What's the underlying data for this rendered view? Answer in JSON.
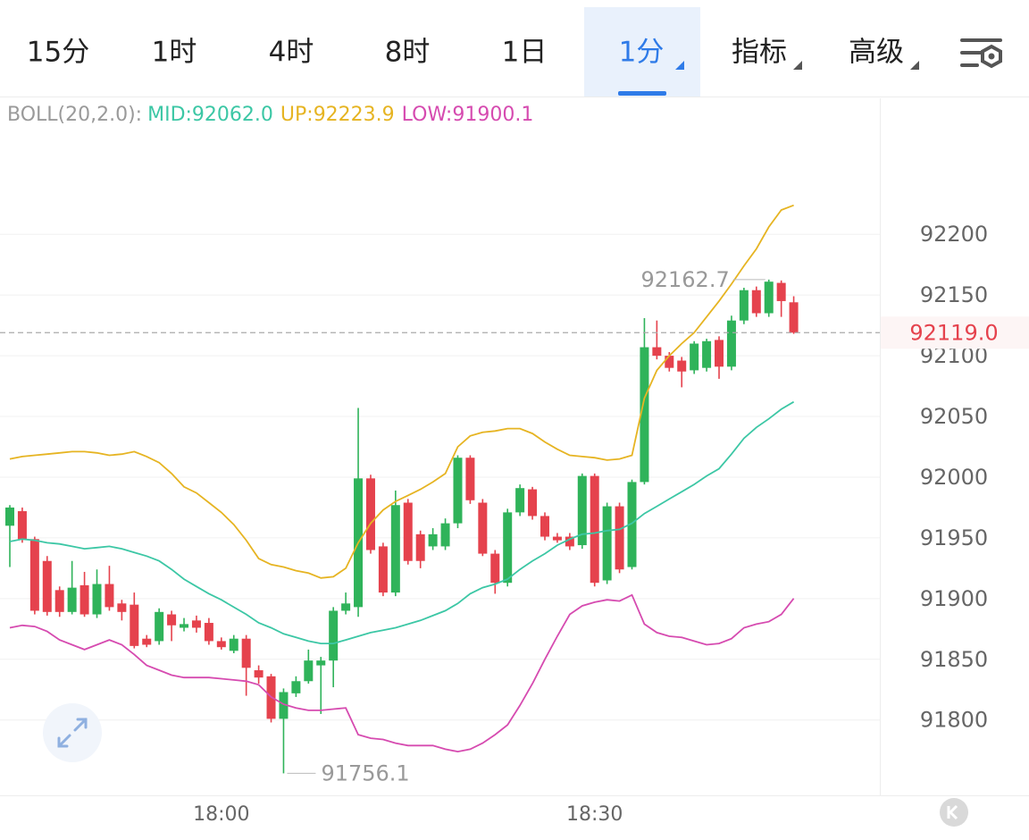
{
  "tabs": [
    "15分",
    "1时",
    "4时",
    "8时",
    "1日",
    "1分",
    "指标",
    "高级"
  ],
  "active_tab": 5,
  "chart_data": {
    "type": "candlestick",
    "legend_label": "BOLL(20,2.0):",
    "up_color": "#2fb35a",
    "down_color": "#e5424d",
    "grid": true,
    "ylim": [
      91738,
      92312
    ],
    "yticks": [
      91800,
      91850,
      91900,
      91950,
      92000,
      92050,
      92100,
      92150,
      92200
    ],
    "categories": [
      null,
      null,
      null,
      null,
      null,
      null,
      null,
      null,
      null,
      null,
      null,
      null,
      null,
      null,
      null,
      null,
      null,
      "18:00",
      null,
      null,
      null,
      null,
      null,
      null,
      null,
      null,
      null,
      null,
      null,
      null,
      null,
      null,
      null,
      null,
      null,
      null,
      null,
      null,
      null,
      null,
      null,
      null,
      null,
      null,
      null,
      null,
      null,
      "18:30",
      null,
      null,
      null,
      null,
      null,
      null,
      null,
      null,
      null,
      null,
      null,
      null,
      null,
      null,
      null,
      null
    ],
    "open": [
      91960,
      91972,
      91949,
      91931,
      91907,
      91889,
      91911,
      91887,
      91912,
      91896,
      91895,
      91867,
      91865,
      91887,
      91876,
      91882,
      91880,
      91865,
      91857,
      91867,
      91841,
      91836,
      91801,
      91822,
      91832,
      91845,
      91849,
      91890,
      91893,
      91999,
      91943,
      91905,
      91979,
      91953,
      91943,
      91943,
      91962,
      92016,
      91979,
      91937,
      91913,
      91971,
      91990,
      91968,
      91951,
      91951,
      91944,
      92001,
      91915,
      91976,
      91926,
      91996,
      92107,
      92100,
      92096,
      92088,
      92090,
      92113,
      92091,
      92129,
      92154,
      92135,
      92160,
      92144
    ],
    "high": [
      91977,
      91975,
      91951,
      91935,
      91910,
      91931,
      91922,
      91924,
      91927,
      91899,
      91905,
      91870,
      91892,
      91890,
      91884,
      91886,
      91884,
      91868,
      91870,
      91870,
      91845,
      91838,
      91826,
      91836,
      91858,
      91852,
      91893,
      91905,
      92057,
      92002,
      91946,
      91989,
      91982,
      91956,
      91958,
      91966,
      92018,
      92018,
      91982,
      91940,
      91974,
      91994,
      91992,
      91971,
      91954,
      91954,
      92003,
      92003,
      91979,
      91979,
      91998,
      92131,
      92129,
      92103,
      92099,
      92112,
      92114,
      92116,
      92133,
      92156,
      92157,
      92162.7,
      92162,
      92149
    ],
    "low": [
      91926,
      91946,
      91887,
      91886,
      91885,
      91887,
      91885,
      91884,
      91890,
      91882,
      91859,
      91860,
      91862,
      91865,
      91873,
      91872,
      91862,
      91858,
      91855,
      91820,
      91830,
      91798,
      91756.1,
      91819,
      91830,
      91805,
      91827,
      91887,
      91885,
      91937,
      91902,
      91902,
      91928,
      91925,
      91940,
      91940,
      91958,
      91978,
      91935,
      91904,
      91910,
      91968,
      91965,
      91948,
      91946,
      91940,
      91941,
      91910,
      91912,
      91921,
      91924,
      91994,
      92097,
      92087,
      92074,
      92085,
      92087,
      92081,
      92088,
      92126,
      92132,
      92132,
      92132,
      92118
    ],
    "close": [
      91975,
      91949,
      91890,
      91889,
      91889,
      91909,
      91887,
      91912,
      91893,
      91889,
      91861,
      91862,
      91889,
      91878,
      91879,
      91876,
      91865,
      91860,
      91867,
      91843,
      91835,
      91801,
      91823,
      91832,
      91849,
      91849,
      91890,
      91896,
      91999,
      91940,
      91905,
      91977,
      91931,
      91931,
      91953,
      91962,
      92016,
      91981,
      91937,
      91913,
      91971,
      91991,
      91968,
      91951,
      91948,
      91943,
      92001,
      91913,
      91976,
      91924,
      91996,
      92107,
      92100,
      92090,
      92087,
      92110,
      92112,
      92091,
      92129,
      92154,
      92135,
      92161,
      92145,
      92119
    ],
    "overlays": [
      {
        "label": "MID:92062.0",
        "color": "#3cc7a5",
        "values": [
          91947,
          91949,
          91948,
          91946,
          91945,
          91943,
          91941,
          91942,
          91943,
          91941,
          91938,
          91935,
          91931,
          91924,
          91916,
          91910,
          91904,
          91899,
          91893,
          91887,
          91880,
          91876,
          91871,
          91868,
          91865,
          91863,
          91863,
          91866,
          91869,
          91872,
          91874,
          91876,
          91879,
          91882,
          91886,
          91890,
          91896,
          91904,
          91909,
          91912,
          91916,
          91924,
          91931,
          91937,
          91944,
          91949,
          91953,
          91954,
          91956,
          91957,
          91962,
          91970,
          91976,
          91982,
          91988,
          91994,
          92001,
          92007,
          92019,
          92032,
          92041,
          92048,
          92056,
          92062.0
        ]
      },
      {
        "label": "UP:92223.9",
        "color": "#e6b422",
        "values": [
          92015,
          92017,
          92018,
          92019,
          92020,
          92021,
          92021,
          92020,
          92018,
          92019,
          92021,
          92017,
          92012,
          92003,
          91992,
          91987,
          91979,
          91971,
          91961,
          91948,
          91933,
          91928,
          91926,
          91923,
          91921,
          91917,
          91918,
          91925,
          91946,
          91962,
          91973,
          91980,
          91985,
          91990,
          91996,
          92003,
          92025,
          92034,
          92037,
          92038,
          92040,
          92040,
          92036,
          92029,
          92023,
          92018,
          92017,
          92016,
          92014,
          92015,
          92018,
          92065,
          92088,
          92100,
          92110,
          92119,
          92132,
          92145,
          92159,
          92174,
          92188,
          92206,
          92220,
          92223.9
        ]
      },
      {
        "label": "LOW:91900.1",
        "color": "#d64bb0",
        "values": [
          91876,
          91878,
          91877,
          91873,
          91866,
          91862,
          91858,
          91862,
          91866,
          91862,
          91854,
          91845,
          91841,
          91837,
          91835,
          91835,
          91835,
          91834,
          91833,
          91832,
          91829,
          91819,
          91813,
          91810,
          91808,
          91808,
          91809,
          91810,
          91788,
          91785,
          91784,
          91781,
          91779,
          91779,
          91779,
          91776,
          91774,
          91776,
          91781,
          91788,
          91796,
          91812,
          91830,
          91850,
          91869,
          91887,
          91894,
          91897,
          91899,
          91898,
          91903,
          91879,
          91872,
          91869,
          91868,
          91865,
          91862,
          91863,
          91867,
          91876,
          91879,
          91881,
          91887,
          91900.1
        ]
      }
    ],
    "last_price": {
      "value": 92119,
      "label": "92119.0"
    },
    "last_price_color": "#e5424d"
  }
}
